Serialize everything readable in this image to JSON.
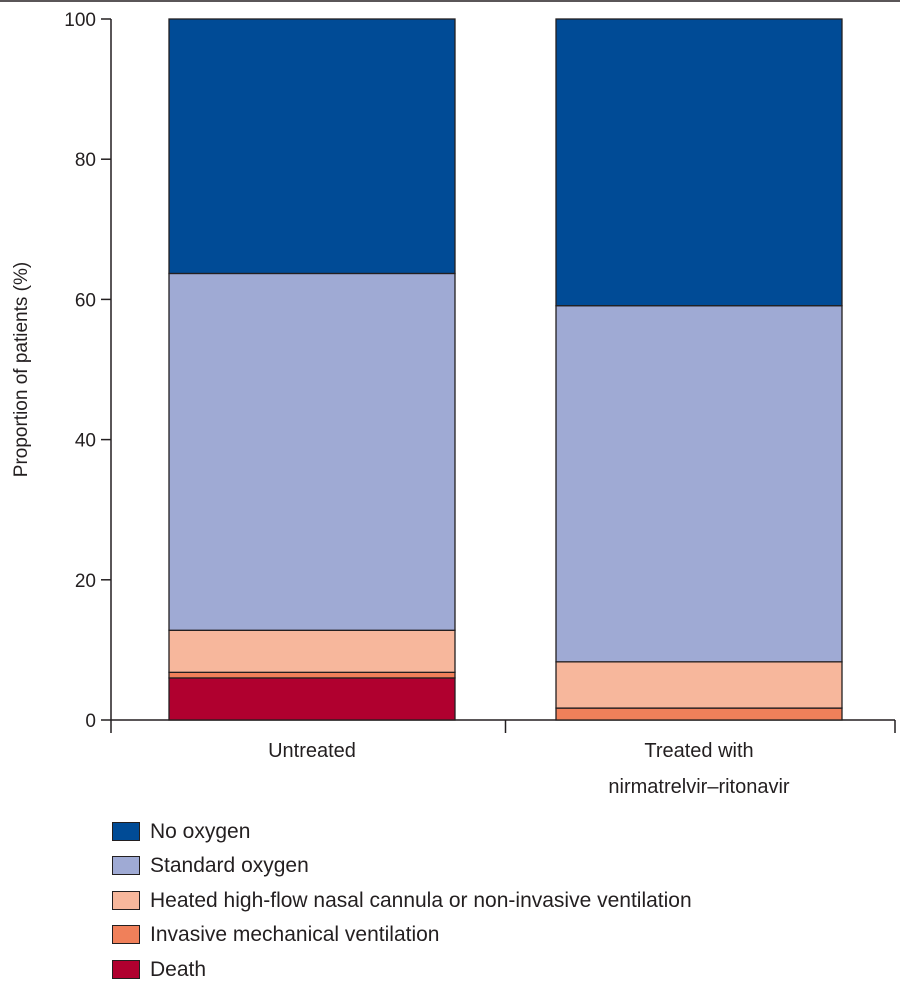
{
  "chart_data": {
    "type": "bar",
    "stacked": true,
    "categories": [
      "Untreated",
      "Treated with nirmatrelvir–ritonavir"
    ],
    "category_label_lines": [
      [
        "Untreated"
      ],
      [
        "Treated with",
        "nirmatrelvir–ritonavir"
      ]
    ],
    "ylabel": "Proportion of patients (%)",
    "xlabel": "",
    "ylim": [
      0,
      100
    ],
    "yticks": [
      0,
      20,
      40,
      60,
      80,
      100
    ],
    "grid": false,
    "legend_position": "bottom-left",
    "series": [
      {
        "name": "Death",
        "color": "#b0002f",
        "values": [
          6.0,
          0.0
        ]
      },
      {
        "name": "Invasive mechanical ventilation",
        "color": "#f0805a",
        "values": [
          0.8,
          1.7
        ]
      },
      {
        "name": "Heated high-flow nasal cannula or non-invasive ventilation",
        "color": "#f7b79c",
        "values": [
          6.0,
          6.6
        ]
      },
      {
        "name": "Standard oxygen",
        "color": "#9faad4",
        "values": [
          50.9,
          50.8
        ]
      },
      {
        "name": "No oxygen",
        "color": "#004b96",
        "values": [
          36.3,
          40.9
        ]
      }
    ]
  }
}
